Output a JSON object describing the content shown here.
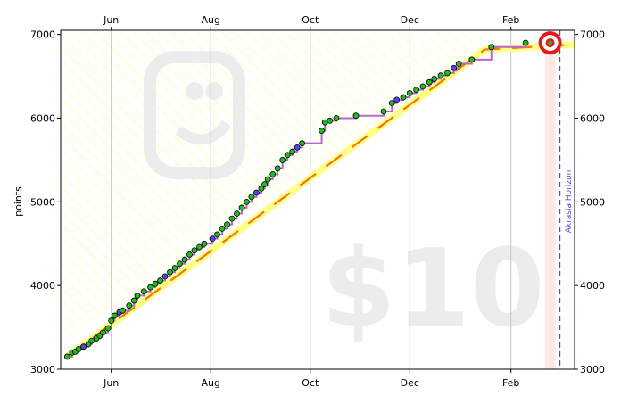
{
  "chart_data": {
    "type": "line",
    "title": "",
    "ylabel": "points",
    "xlabel": "",
    "ylim": [
      3000,
      7050
    ],
    "x_ticks": [
      "Jun",
      "Aug",
      "Oct",
      "Dec",
      "Feb"
    ],
    "y_ticks": [
      3000,
      4000,
      5000,
      6000,
      7000
    ],
    "watermark_amount": "$10",
    "akrasia_label": "Akrasia Horizon",
    "goal_value": 6900,
    "colors": {
      "datapoint_fill": "#22bb22",
      "datapoint_blue": "#5544ee",
      "steps": "#bb66cc",
      "road_edge": "#ee7711",
      "road_fill": "#ffff88",
      "hatch": "#ffff99",
      "goal_target": "#e81818",
      "akrasia_line": "#4b4bdd"
    },
    "series": [
      {
        "values_x": [
          "May 5",
          "May 8",
          "May 10",
          "May 12",
          "May 15",
          "May 18",
          "May 20",
          "May 23",
          "May 25",
          "May 27",
          "May 30",
          "Jun 1",
          "Jun 3",
          "Jun 6",
          "Jun 8",
          "Jun 12",
          "Jun 15",
          "Jun 17",
          "Jun 21",
          "Jun 25",
          "Jun 28",
          "Jul 1",
          "Jul 4",
          "Jul 7",
          "Jul 10",
          "Jul 13",
          "Jul 16",
          "Jul 19",
          "Jul 22",
          "Jul 25",
          "Jul 28",
          "Aug 2",
          "Aug 5",
          "Aug 8",
          "Aug 11",
          "Aug 14",
          "Aug 17",
          "Aug 20",
          "Aug 23",
          "Aug 26",
          "Aug 29",
          "Sep 1",
          "Sep 3",
          "Sep 5",
          "Sep 8",
          "Sep 11",
          "Sep 14",
          "Sep 17",
          "Sep 20",
          "Sep 23",
          "Sep 26",
          "Oct 8",
          "Oct 10",
          "Oct 13",
          "Oct 17",
          "Oct 29",
          "Nov 15",
          "Nov 20",
          "Nov 23",
          "Nov 27",
          "Dec 1",
          "Dec 5",
          "Dec 9",
          "Dec 13",
          "Dec 16",
          "Dec 20",
          "Dec 24",
          "Dec 28",
          "Dec 31",
          "Jan 8",
          "Jan 20",
          "Feb 10"
        ],
        "values": [
          3150,
          3200,
          3210,
          3240,
          3270,
          3300,
          3340,
          3370,
          3400,
          3440,
          3490,
          3580,
          3640,
          3680,
          3700,
          3760,
          3820,
          3880,
          3930,
          3980,
          4020,
          4060,
          4110,
          4160,
          4210,
          4260,
          4310,
          4370,
          4420,
          4460,
          4500,
          4560,
          4610,
          4680,
          4730,
          4800,
          4860,
          4930,
          5000,
          5060,
          5110,
          5160,
          5210,
          5270,
          5330,
          5400,
          5500,
          5560,
          5600,
          5650,
          5700,
          5850,
          5950,
          5970,
          6000,
          6030,
          6080,
          6180,
          6220,
          6250,
          6300,
          6340,
          6380,
          6430,
          6470,
          6510,
          6540,
          6600,
          6650,
          6700,
          6850,
          6900
        ]
      }
    ]
  }
}
